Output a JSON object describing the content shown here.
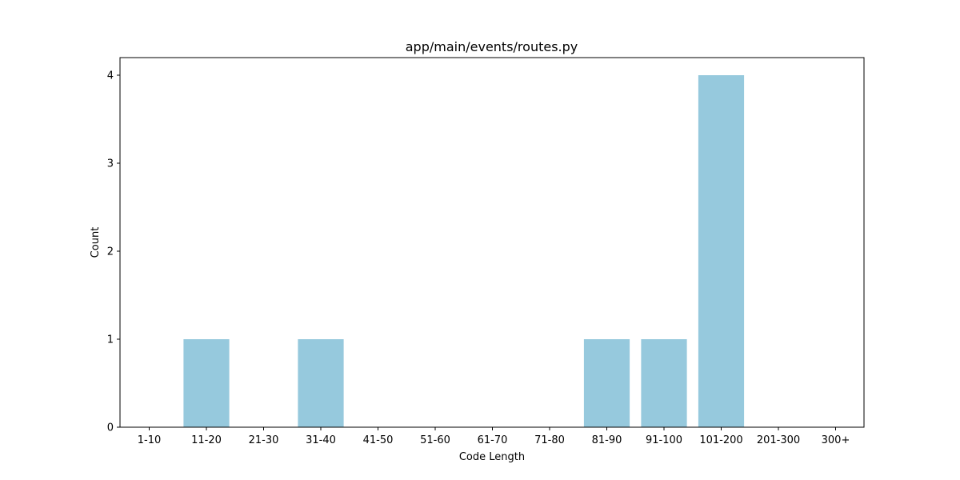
{
  "chart_data": {
    "type": "bar",
    "title": "app/main/events/routes.py",
    "xlabel": "Code Length",
    "ylabel": "Count",
    "categories": [
      "1-10",
      "11-20",
      "21-30",
      "31-40",
      "41-50",
      "51-60",
      "61-70",
      "71-80",
      "81-90",
      "91-100",
      "101-200",
      "201-300",
      "300+"
    ],
    "values": [
      0,
      1,
      0,
      1,
      0,
      0,
      0,
      0,
      1,
      1,
      4,
      0,
      0
    ],
    "yticks": [
      "0",
      "1",
      "2",
      "3",
      "4"
    ],
    "ylim": [
      0,
      4.2
    ],
    "grid": false,
    "bar_color": "#96c9dd"
  }
}
